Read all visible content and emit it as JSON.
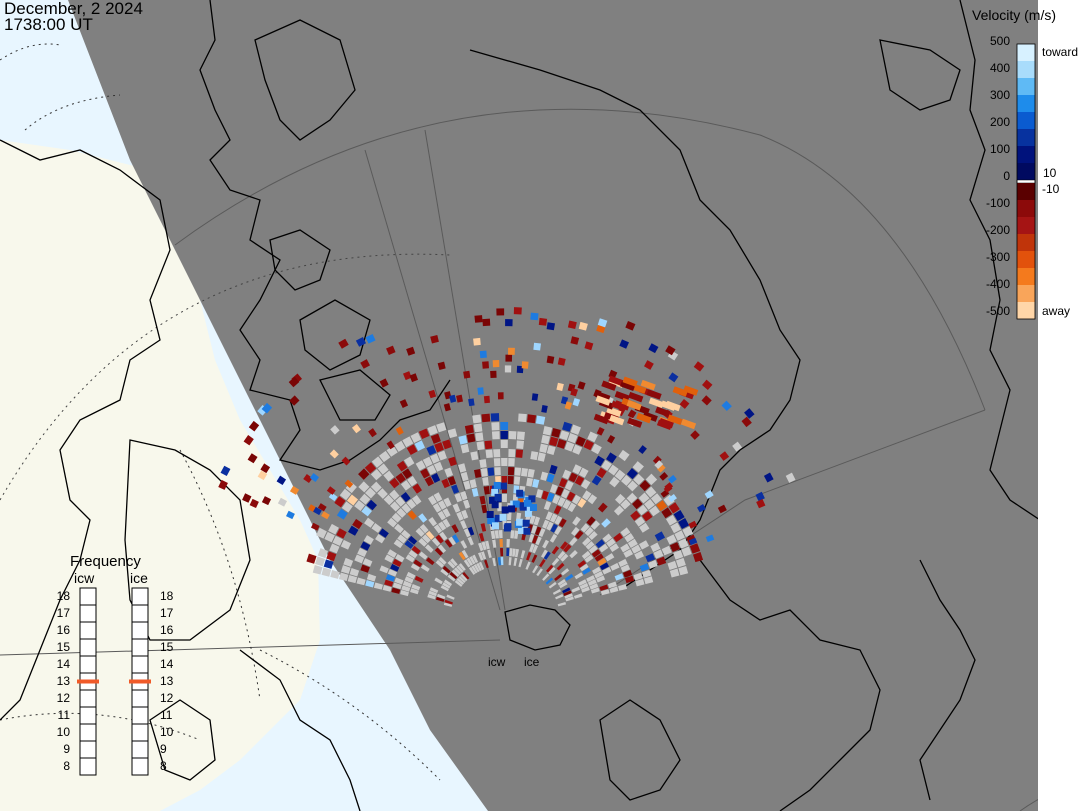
{
  "title": {
    "date": "December, 2 2024",
    "time": "1738:00 UT"
  },
  "colors": {
    "night": "#808080",
    "day_land": "#f8f8ec",
    "day_ocean": "#e8f6ff",
    "coast": "#000000",
    "ground_scatter": "#cccccc"
  },
  "legend": {
    "title": "Velocity (m/s)",
    "ticks": [
      "500",
      "400",
      "300",
      "200",
      "100",
      "0",
      "-100",
      "-200",
      "-300",
      "-400",
      "-500"
    ],
    "inner_ticks": [
      "10",
      "-10"
    ],
    "top_label": "toward",
    "bottom_label": "away",
    "toward_colors": [
      "#d7f1ff",
      "#a9dcfb",
      "#5fbaf5",
      "#1e8ceb",
      "#0a5bd0",
      "#07329f",
      "#00127c",
      "#000a60"
    ],
    "away_colors": [
      "#5a0000",
      "#8c0a0a",
      "#a51414",
      "#c0340a",
      "#e2520c",
      "#f47a1d",
      "#f9a55a",
      "#ffd6a8"
    ]
  },
  "frequency": {
    "title": "Frequency",
    "radars": [
      {
        "name": "icw",
        "selected": "13"
      },
      {
        "name": "ice",
        "selected": "13"
      }
    ],
    "scale": [
      "18",
      "17",
      "16",
      "15",
      "14",
      "13",
      "12",
      "11",
      "10",
      "9",
      "8"
    ]
  },
  "radar_sites": [
    "icw",
    "ice"
  ],
  "velocity_bins": {
    "dark_red": [
      "#8b0a0a",
      "#a01010",
      "#7a0505"
    ],
    "orange": [
      "#e0600c",
      "#f08a30",
      "#ffd0a0"
    ],
    "blue": [
      "#001585",
      "#0a2fa0",
      "#1e7be0",
      "#9fd6ff"
    ]
  }
}
